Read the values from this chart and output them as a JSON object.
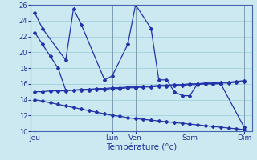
{
  "xlabel": "Température (°c)",
  "ylim": [
    10,
    26
  ],
  "yticks": [
    10,
    12,
    14,
    16,
    18,
    20,
    22,
    24,
    26
  ],
  "background_color": "#cce8f0",
  "grid_color": "#99ccd9",
  "line_color": "#2233aa",
  "day_labels": [
    "Jeu",
    "Lun",
    "Ven",
    "Sam",
    "Dim"
  ],
  "day_positions": [
    0,
    10,
    13,
    20,
    27
  ],
  "xlim": [
    -0.5,
    28
  ],
  "s1x": [
    0,
    1,
    4,
    5,
    6,
    9,
    10,
    12,
    13,
    15,
    16,
    17,
    18,
    19,
    20,
    21,
    24,
    27
  ],
  "s1y": [
    25.0,
    23.0,
    19.0,
    25.5,
    23.5,
    16.5,
    17.0,
    21.0,
    26.0,
    23.0,
    16.5,
    16.5,
    15.0,
    14.5,
    14.5,
    16.0,
    16.0,
    10.5
  ],
  "s2x": [
    0,
    1,
    2,
    3,
    4,
    5,
    6,
    7,
    8,
    9,
    10,
    11,
    12,
    13,
    14,
    15,
    16,
    17,
    18,
    19,
    20,
    21,
    22,
    23,
    24,
    25,
    26,
    27
  ],
  "s2y": [
    22.5,
    21.0,
    19.5,
    18.0,
    15.2,
    15.2,
    15.3,
    15.3,
    15.4,
    15.4,
    15.5,
    15.5,
    15.6,
    15.6,
    15.7,
    15.7,
    15.8,
    15.8,
    15.9,
    15.9,
    16.0,
    16.0,
    16.1,
    16.1,
    16.2,
    16.2,
    16.3,
    16.4
  ],
  "s3x": [
    0,
    1,
    2,
    3,
    4,
    5,
    6,
    7,
    8,
    9,
    10,
    11,
    12,
    13,
    14,
    15,
    16,
    17,
    18,
    19,
    20,
    21,
    22,
    23,
    24,
    25,
    26,
    27
  ],
  "s3y": [
    15.0,
    15.0,
    15.1,
    15.1,
    15.1,
    15.2,
    15.2,
    15.2,
    15.3,
    15.3,
    15.4,
    15.4,
    15.5,
    15.5,
    15.6,
    15.6,
    15.7,
    15.7,
    15.8,
    15.8,
    15.9,
    15.9,
    16.0,
    16.0,
    16.1,
    16.1,
    16.2,
    16.3
  ],
  "s4x": [
    0,
    1,
    2,
    3,
    4,
    5,
    6,
    7,
    8,
    9,
    10,
    11,
    12,
    13,
    14,
    15,
    16,
    17,
    18,
    19,
    20,
    21,
    22,
    23,
    24,
    25,
    26,
    27
  ],
  "s4y": [
    14.0,
    13.8,
    13.6,
    13.4,
    13.2,
    13.0,
    12.8,
    12.6,
    12.4,
    12.2,
    12.0,
    11.9,
    11.7,
    11.6,
    11.5,
    11.4,
    11.3,
    11.2,
    11.1,
    11.0,
    10.9,
    10.8,
    10.7,
    10.6,
    10.5,
    10.4,
    10.3,
    10.2
  ]
}
